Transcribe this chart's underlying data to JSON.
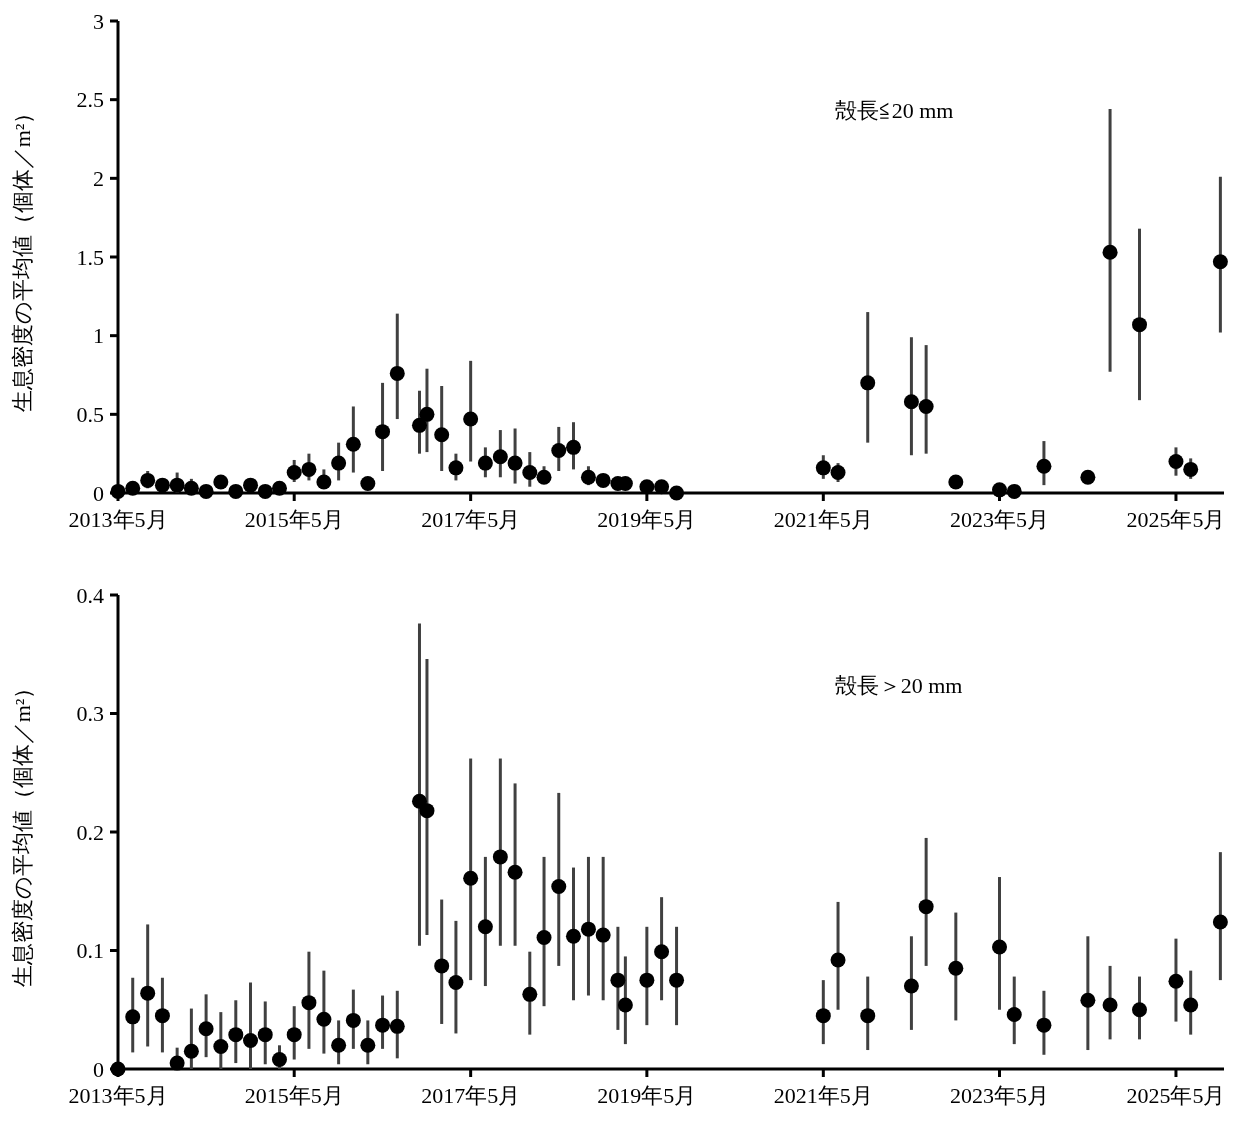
{
  "chart_data": [
    {
      "type": "scatter",
      "ylabel": "生息密度の平均値（個体／m²）",
      "annotations": [
        "殻長≦20 mm"
      ],
      "marker": "circle",
      "grid": false,
      "x": [
        "2013-05",
        "2013-07",
        "2013-09",
        "2013-11",
        "2014-01",
        "2014-03",
        "2014-05",
        "2014-07",
        "2014-09",
        "2014-11",
        "2015-01",
        "2015-03",
        "2015-05",
        "2015-07",
        "2015-09",
        "2015-11",
        "2016-01",
        "2016-03",
        "2016-05",
        "2016-07",
        "2016-10",
        "2016-11",
        "2017-01",
        "2017-03",
        "2017-05",
        "2017-07",
        "2017-09",
        "2017-11",
        "2018-01",
        "2018-03",
        "2018-05",
        "2018-07",
        "2018-09",
        "2018-11",
        "2019-01",
        "2019-02",
        "2019-05",
        "2019-07",
        "2019-09",
        "2021-05",
        "2021-07",
        "2021-11",
        "2022-05",
        "2022-07",
        "2022-11",
        "2023-05",
        "2023-07",
        "2023-11",
        "2024-05",
        "2024-08",
        "2024-12",
        "2025-05",
        "2025-07",
        "2025-11"
      ],
      "series": [
        {
          "color": "#000000",
          "values": [
            0.01,
            0.03,
            0.08,
            0.05,
            0.05,
            0.03,
            0.01,
            0.07,
            0.01,
            0.05,
            0.01,
            0.03,
            0.13,
            0.15,
            0.07,
            0.19,
            0.31,
            0.06,
            0.39,
            0.76,
            0.43,
            0.5,
            0.37,
            0.16,
            0.47,
            0.19,
            0.23,
            0.19,
            0.13,
            0.1,
            0.27,
            0.29,
            0.1,
            0.08,
            0.06,
            0.06,
            0.04,
            0.04,
            0.0,
            0.16,
            0.13,
            0.7,
            0.58,
            0.55,
            0.07,
            0.02,
            0.01,
            0.17,
            0.1,
            1.53,
            1.07,
            0.2,
            0.15,
            1.47
          ],
          "errors": [
            null,
            null,
            [
              0.03,
              0.14
            ],
            null,
            [
              0.0,
              0.13
            ],
            [
              0.0,
              0.09
            ],
            null,
            null,
            null,
            null,
            null,
            null,
            [
              0.07,
              0.21
            ],
            [
              0.08,
              0.25
            ],
            [
              0.03,
              0.15
            ],
            [
              0.08,
              0.32
            ],
            [
              0.13,
              0.55
            ],
            null,
            [
              0.14,
              0.7
            ],
            [
              0.47,
              1.14
            ],
            [
              0.25,
              0.65
            ],
            [
              0.26,
              0.79
            ],
            [
              0.14,
              0.68
            ],
            [
              0.08,
              0.25
            ],
            [
              0.2,
              0.84
            ],
            [
              0.1,
              0.29
            ],
            [
              0.1,
              0.4
            ],
            [
              0.06,
              0.41
            ],
            [
              0.04,
              0.26
            ],
            [
              0.06,
              0.17
            ],
            [
              0.14,
              0.42
            ],
            [
              0.15,
              0.45
            ],
            [
              0.05,
              0.17
            ],
            null,
            null,
            null,
            null,
            null,
            null,
            [
              0.09,
              0.24
            ],
            [
              0.07,
              0.19
            ],
            [
              0.32,
              1.15
            ],
            [
              0.24,
              0.99
            ],
            [
              0.25,
              0.94
            ],
            null,
            null,
            null,
            [
              0.05,
              0.33
            ],
            null,
            [
              0.77,
              2.44
            ],
            [
              0.59,
              1.68
            ],
            [
              0.11,
              0.29
            ],
            [
              0.09,
              0.22
            ],
            [
              1.02,
              2.01
            ]
          ]
        }
      ],
      "xlim": [
        "2013-05-01",
        "2025-11-16"
      ],
      "xticks": [
        {
          "value": "2013-05",
          "label": "2013年5月"
        },
        {
          "value": "2015-05",
          "label": "2015年5月"
        },
        {
          "value": "2017-05",
          "label": "2017年5月"
        },
        {
          "value": "2019-05",
          "label": "2019年5月"
        },
        {
          "value": "2021-05",
          "label": "2021年5月"
        },
        {
          "value": "2023-05",
          "label": "2023年5月"
        },
        {
          "value": "2025-05",
          "label": "2025年5月"
        }
      ],
      "ylim": [
        0,
        3
      ],
      "yticks": [
        0,
        0.5,
        1,
        1.5,
        2,
        2.5,
        3
      ]
    },
    {
      "type": "scatter",
      "ylabel": "生息密度の平均値（個体／m²）",
      "annotations": [
        "殻長＞20 mm"
      ],
      "marker": "circle",
      "grid": false,
      "x": [
        "2013-05",
        "2013-07",
        "2013-09",
        "2013-11",
        "2014-01",
        "2014-03",
        "2014-05",
        "2014-07",
        "2014-09",
        "2014-11",
        "2015-01",
        "2015-03",
        "2015-05",
        "2015-07",
        "2015-09",
        "2015-11",
        "2016-01",
        "2016-03",
        "2016-05",
        "2016-07",
        "2016-10",
        "2016-11",
        "2017-01",
        "2017-03",
        "2017-05",
        "2017-07",
        "2017-09",
        "2017-11",
        "2018-01",
        "2018-03",
        "2018-05",
        "2018-07",
        "2018-09",
        "2018-11",
        "2019-01",
        "2019-02",
        "2019-05",
        "2019-07",
        "2019-09",
        "2021-05",
        "2021-07",
        "2021-11",
        "2022-05",
        "2022-07",
        "2022-11",
        "2023-05",
        "2023-07",
        "2023-11",
        "2024-05",
        "2024-08",
        "2024-12",
        "2025-05",
        "2025-07",
        "2025-11"
      ],
      "series": [
        {
          "color": "#000000",
          "values": [
            0.0,
            0.044,
            0.064,
            0.045,
            0.005,
            0.015,
            0.034,
            0.019,
            0.029,
            0.024,
            0.029,
            0.008,
            0.029,
            0.056,
            0.042,
            0.02,
            0.041,
            0.02,
            0.037,
            0.036,
            0.226,
            0.218,
            0.087,
            0.073,
            0.161,
            0.12,
            0.179,
            0.166,
            0.063,
            0.111,
            0.154,
            0.112,
            0.118,
            0.113,
            0.075,
            0.054,
            0.075,
            0.099,
            0.075,
            0.045,
            0.092,
            0.045,
            0.07,
            0.137,
            0.085,
            0.103,
            0.046,
            0.037,
            0.058,
            0.054,
            0.05,
            0.074,
            0.054,
            0.124
          ],
          "errors": [
            null,
            [
              0.014,
              0.077
            ],
            [
              0.019,
              0.122
            ],
            [
              0.014,
              0.077
            ],
            [
              0.0,
              0.018
            ],
            [
              0.0,
              0.051
            ],
            [
              0.01,
              0.063
            ],
            [
              0.0,
              0.048
            ],
            [
              0.005,
              0.058
            ],
            [
              0.0,
              0.073
            ],
            [
              0.004,
              0.057
            ],
            [
              0.0,
              0.02
            ],
            [
              0.008,
              0.053
            ],
            [
              0.017,
              0.099
            ],
            [
              0.013,
              0.083
            ],
            [
              0.004,
              0.041
            ],
            [
              0.017,
              0.067
            ],
            [
              0.004,
              0.041
            ],
            [
              0.017,
              0.062
            ],
            [
              0.009,
              0.066
            ],
            [
              0.104,
              0.376
            ],
            [
              0.113,
              0.346
            ],
            [
              0.038,
              0.143
            ],
            [
              0.03,
              0.125
            ],
            [
              0.075,
              0.262
            ],
            [
              0.07,
              0.179
            ],
            [
              0.104,
              0.262
            ],
            [
              0.104,
              0.241
            ],
            [
              0.029,
              0.099
            ],
            [
              0.053,
              0.179
            ],
            [
              0.087,
              0.233
            ],
            [
              0.058,
              0.17
            ],
            [
              0.062,
              0.179
            ],
            [
              0.058,
              0.179
            ],
            [
              0.033,
              0.12
            ],
            [
              0.021,
              0.095
            ],
            [
              0.037,
              0.12
            ],
            [
              0.058,
              0.145
            ],
            [
              0.037,
              0.12
            ],
            [
              0.021,
              0.075
            ],
            [
              0.05,
              0.141
            ],
            [
              0.016,
              0.078
            ],
            [
              0.033,
              0.112
            ],
            [
              0.087,
              0.195
            ],
            [
              0.041,
              0.132
            ],
            [
              0.05,
              0.162
            ],
            [
              0.021,
              0.078
            ],
            [
              0.012,
              0.066
            ],
            [
              0.016,
              0.112
            ],
            [
              0.025,
              0.087
            ],
            [
              0.025,
              0.078
            ],
            [
              0.04,
              0.11
            ],
            [
              0.029,
              0.083
            ],
            [
              0.075,
              0.183
            ]
          ]
        }
      ],
      "xlim": [
        "2013-05-01",
        "2025-11-16"
      ],
      "xticks": [
        {
          "value": "2013-05",
          "label": "2013年5月"
        },
        {
          "value": "2015-05",
          "label": "2015年5月"
        },
        {
          "value": "2017-05",
          "label": "2017年5月"
        },
        {
          "value": "2019-05",
          "label": "2019年5月"
        },
        {
          "value": "2021-05",
          "label": "2021年5月"
        },
        {
          "value": "2023-05",
          "label": "2023年5月"
        },
        {
          "value": "2025-05",
          "label": "2025年5月"
        }
      ],
      "ylim": [
        0,
        0.4
      ],
      "yticks": [
        0,
        0.1,
        0.2,
        0.3,
        0.4
      ]
    }
  ]
}
